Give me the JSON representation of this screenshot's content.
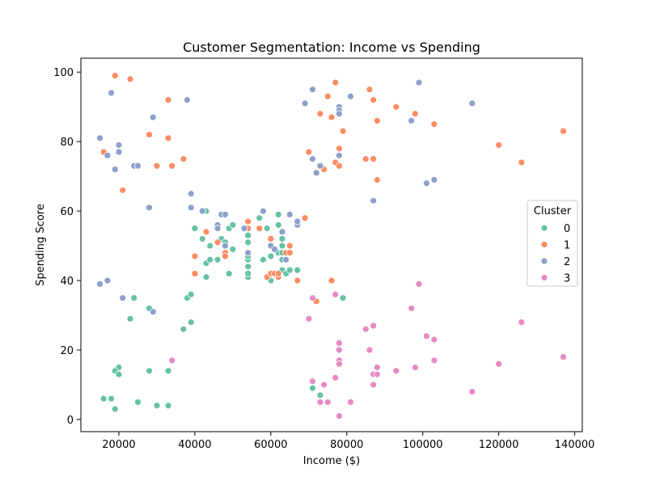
{
  "chart_data": {
    "type": "scatter",
    "title": "Customer Segmentation: Income vs Spending",
    "xlabel": "Income ($)",
    "ylabel": "Spending Score",
    "xlim": [
      10000,
      142000
    ],
    "ylim": [
      -3.5,
      104
    ],
    "xticks": [
      20000,
      40000,
      60000,
      80000,
      100000,
      120000,
      140000
    ],
    "yticks": [
      0,
      20,
      40,
      60,
      80,
      100
    ],
    "grid": false,
    "legend": {
      "title": "Cluster",
      "placement": "center-right"
    },
    "series": [
      {
        "name": "0",
        "color": "#66c2a5",
        "points": [
          [
            16000,
            6
          ],
          [
            18000,
            6
          ],
          [
            19000,
            3
          ],
          [
            20000,
            15
          ],
          [
            19000,
            14
          ],
          [
            20000,
            13
          ],
          [
            25000,
            5
          ],
          [
            30000,
            4
          ],
          [
            33000,
            4
          ],
          [
            23000,
            29
          ],
          [
            24000,
            35
          ],
          [
            28000,
            32
          ],
          [
            28000,
            14
          ],
          [
            33000,
            14
          ],
          [
            37000,
            26
          ],
          [
            38000,
            35
          ],
          [
            39000,
            28
          ],
          [
            39000,
            36
          ],
          [
            40000,
            55
          ],
          [
            42000,
            52
          ],
          [
            43000,
            60
          ],
          [
            43000,
            45
          ],
          [
            43000,
            41
          ],
          [
            44000,
            50
          ],
          [
            44000,
            46
          ],
          [
            46000,
            56
          ],
          [
            46000,
            46
          ],
          [
            47000,
            52
          ],
          [
            47000,
            59
          ],
          [
            48000,
            51
          ],
          [
            48000,
            47
          ],
          [
            49000,
            55
          ],
          [
            49000,
            42
          ],
          [
            50000,
            56
          ],
          [
            50000,
            49
          ],
          [
            54000,
            41
          ],
          [
            54000,
            42
          ],
          [
            54000,
            44
          ],
          [
            54000,
            46
          ],
          [
            54000,
            47
          ],
          [
            54000,
            48
          ],
          [
            54000,
            51
          ],
          [
            54000,
            53
          ],
          [
            54000,
            55
          ],
          [
            57000,
            58
          ],
          [
            58000,
            46
          ],
          [
            59000,
            55
          ],
          [
            60000,
            40
          ],
          [
            60000,
            47
          ],
          [
            61000,
            49
          ],
          [
            62000,
            41
          ],
          [
            62000,
            48
          ],
          [
            62000,
            56
          ],
          [
            62000,
            59
          ],
          [
            63000,
            43
          ],
          [
            63000,
            46
          ],
          [
            63000,
            48
          ],
          [
            63000,
            50
          ],
          [
            63000,
            52
          ],
          [
            64000,
            42
          ],
          [
            65000,
            43
          ],
          [
            65000,
            50
          ],
          [
            67000,
            43
          ],
          [
            71000,
            9
          ],
          [
            73000,
            7
          ],
          [
            79000,
            35
          ]
        ]
      },
      {
        "name": "1",
        "color": "#fc8d62",
        "points": [
          [
            16000,
            77
          ],
          [
            19000,
            99
          ],
          [
            21000,
            66
          ],
          [
            23000,
            98
          ],
          [
            28000,
            82
          ],
          [
            30000,
            73
          ],
          [
            33000,
            92
          ],
          [
            33000,
            81
          ],
          [
            34000,
            73
          ],
          [
            37000,
            75
          ],
          [
            40000,
            47
          ],
          [
            40000,
            42
          ],
          [
            43000,
            54
          ],
          [
            46000,
            51
          ],
          [
            48000,
            48
          ],
          [
            48000,
            47
          ],
          [
            54000,
            57
          ],
          [
            54000,
            55
          ],
          [
            57000,
            55
          ],
          [
            59000,
            41
          ],
          [
            60000,
            42
          ],
          [
            60000,
            52
          ],
          [
            61000,
            42
          ],
          [
            62000,
            41
          ],
          [
            62000,
            42
          ],
          [
            64000,
            48
          ],
          [
            65000,
            50
          ],
          [
            65000,
            48
          ],
          [
            67000,
            40
          ],
          [
            69000,
            58
          ],
          [
            70000,
            77
          ],
          [
            72000,
            34
          ],
          [
            73000,
            88
          ],
          [
            74000,
            72
          ],
          [
            75000,
            93
          ],
          [
            76000,
            87
          ],
          [
            76000,
            40
          ],
          [
            77000,
            97
          ],
          [
            77000,
            74
          ],
          [
            78000,
            73
          ],
          [
            78000,
            78
          ],
          [
            78000,
            88
          ],
          [
            79000,
            83
          ],
          [
            85000,
            75
          ],
          [
            86000,
            95
          ],
          [
            87000,
            92
          ],
          [
            87000,
            75
          ],
          [
            88000,
            86
          ],
          [
            88000,
            69
          ],
          [
            93000,
            90
          ],
          [
            98000,
            88
          ],
          [
            103000,
            85
          ],
          [
            120000,
            79
          ],
          [
            126000,
            74
          ],
          [
            137000,
            83
          ]
        ]
      },
      {
        "name": "2",
        "color": "#8da0cb",
        "points": [
          [
            15000,
            81
          ],
          [
            15000,
            39
          ],
          [
            17000,
            76
          ],
          [
            17000,
            40
          ],
          [
            18000,
            94
          ],
          [
            19000,
            72
          ],
          [
            20000,
            79
          ],
          [
            20000,
            77
          ],
          [
            21000,
            35
          ],
          [
            24000,
            73
          ],
          [
            25000,
            73
          ],
          [
            28000,
            61
          ],
          [
            29000,
            87
          ],
          [
            29000,
            31
          ],
          [
            38000,
            92
          ],
          [
            39000,
            65
          ],
          [
            39000,
            61
          ],
          [
            42000,
            60
          ],
          [
            46000,
            56
          ],
          [
            46000,
            55
          ],
          [
            47000,
            59
          ],
          [
            48000,
            59
          ],
          [
            48000,
            50
          ],
          [
            53000,
            55
          ],
          [
            54000,
            48
          ],
          [
            58000,
            60
          ],
          [
            60000,
            50
          ],
          [
            61000,
            49
          ],
          [
            63000,
            54
          ],
          [
            64000,
            46
          ],
          [
            65000,
            59
          ],
          [
            67000,
            56
          ],
          [
            67000,
            57
          ],
          [
            69000,
            91
          ],
          [
            71000,
            95
          ],
          [
            71000,
            75
          ],
          [
            72000,
            71
          ],
          [
            73000,
            73
          ],
          [
            78000,
            90
          ],
          [
            78000,
            89
          ],
          [
            78000,
            88
          ],
          [
            78000,
            76
          ],
          [
            81000,
            93
          ],
          [
            87000,
            63
          ],
          [
            97000,
            86
          ],
          [
            99000,
            97
          ],
          [
            101000,
            68
          ],
          [
            103000,
            69
          ],
          [
            113000,
            91
          ]
        ]
      },
      {
        "name": "3",
        "color": "#e78ac3",
        "points": [
          [
            34000,
            17
          ],
          [
            70000,
            29
          ],
          [
            71000,
            35
          ],
          [
            71000,
            11
          ],
          [
            73000,
            5
          ],
          [
            74000,
            10
          ],
          [
            75000,
            5
          ],
          [
            77000,
            36
          ],
          [
            77000,
            12
          ],
          [
            78000,
            22
          ],
          [
            78000,
            20
          ],
          [
            78000,
            17
          ],
          [
            78000,
            16
          ],
          [
            78000,
            1
          ],
          [
            81000,
            5
          ],
          [
            85000,
            26
          ],
          [
            86000,
            20
          ],
          [
            87000,
            27
          ],
          [
            87000,
            13
          ],
          [
            87000,
            10
          ],
          [
            88000,
            15
          ],
          [
            88000,
            13
          ],
          [
            93000,
            14
          ],
          [
            97000,
            32
          ],
          [
            98000,
            15
          ],
          [
            99000,
            39
          ],
          [
            101000,
            24
          ],
          [
            103000,
            23
          ],
          [
            103000,
            17
          ],
          [
            113000,
            8
          ],
          [
            120000,
            16
          ],
          [
            126000,
            28
          ],
          [
            137000,
            18
          ]
        ]
      }
    ]
  }
}
